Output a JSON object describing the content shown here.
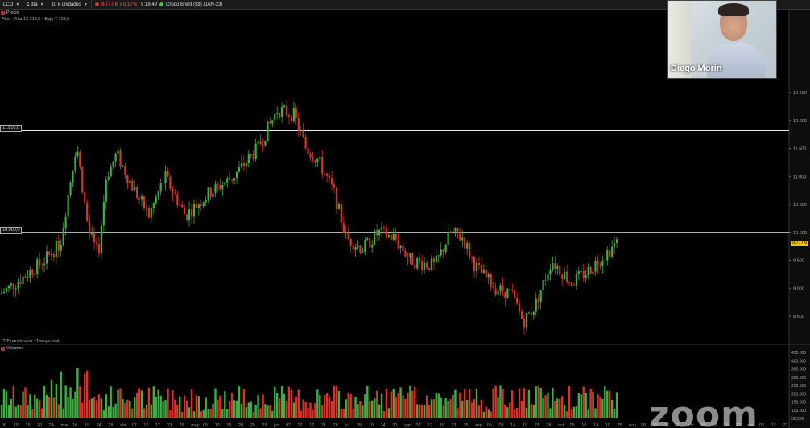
{
  "toolbar": {
    "symbol": "LCO",
    "period": "1 día",
    "units": "10 k unidades",
    "price": "9.777,6",
    "change": "(-0,17%)",
    "time": "9:18:49",
    "instrument": "Crudo Brent ($$) (JAN-23)",
    "status_color": "#2ecc40"
  },
  "price_pane": {
    "label": "Precio",
    "range_text": "Año: • Alta 13.313,5 • Baja 7.703,5",
    "hline_upper": "11.816,0",
    "hline_lower": "10.000,0",
    "last_price": "9.777,6",
    "y_ticks": [
      "12.500",
      "12.000",
      "11.500",
      "11.000",
      "10.500",
      "10.000",
      "9.500",
      "9.000",
      "8.500"
    ],
    "source": "IT-Finance.com - Tiempo real"
  },
  "volume_pane": {
    "label": "Volumen",
    "y_ticks": [
      "450.000",
      "400.000",
      "350.000",
      "300.000",
      "250.000",
      "200.000",
      "150.000",
      "100.000",
      "50.000"
    ]
  },
  "x_axis": {
    "labels": [
      "06",
      "10",
      "15",
      "20",
      "24",
      "mar",
      "10",
      "15",
      "24",
      "28",
      "abr",
      "07",
      "12",
      "17",
      "21",
      "26",
      "may",
      "05",
      "10",
      "15",
      "20",
      "25",
      "29",
      "jun",
      "07",
      "12",
      "17",
      "21",
      "28",
      "jul",
      "05",
      "10",
      "14",
      "20",
      "ago",
      "07",
      "12",
      "16",
      "21",
      "25",
      "sep",
      "05",
      "09",
      "14",
      "19",
      "23",
      "28",
      "oct",
      "05",
      "10",
      "14",
      "19",
      "25",
      "nov",
      "08",
      "12",
      "17",
      "21",
      "dic",
      "09",
      "13",
      "18",
      "22",
      "ene",
      "06",
      "12",
      "22"
    ]
  },
  "webcam": {
    "name": "Diego Morin"
  },
  "zoom": {
    "logo": "zoom"
  },
  "colors": {
    "up": "#3cb043",
    "down": "#e0302a",
    "hline": "#e8e8e8",
    "last_tag": "#f5c400"
  }
}
